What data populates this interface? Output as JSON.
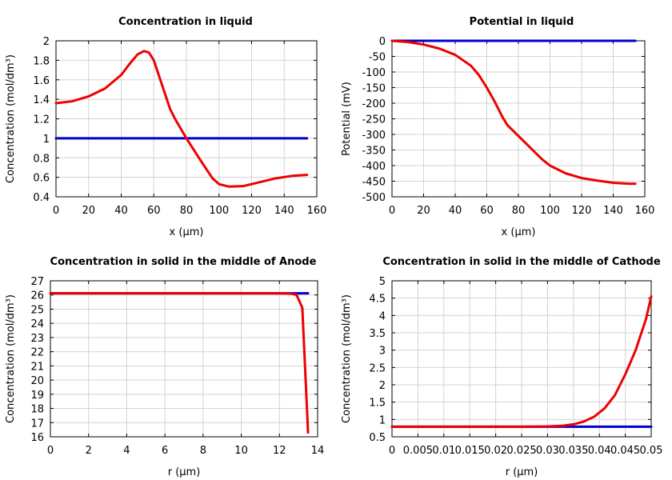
{
  "chart_data": [
    {
      "type": "line",
      "title": "Concentration in liquid",
      "xlabel": "x (μm)",
      "ylabel": "Concentration (mol/dm³)",
      "xlim": [
        0,
        160
      ],
      "ylim": [
        0.4,
        2
      ],
      "xticks": [
        "0",
        "20",
        "40",
        "60",
        "80",
        "100",
        "120",
        "140",
        "160"
      ],
      "yticks": [
        "0.4",
        "0.6",
        "0.8",
        "1",
        "1.2",
        "1.4",
        "1.6",
        "1.8",
        "2"
      ],
      "grid": true,
      "series": [
        {
          "color": "#0000cc",
          "x": [
            0,
            154
          ],
          "y": [
            1.0,
            1.0
          ]
        },
        {
          "color": "#ee0000",
          "x": [
            0,
            10,
            20,
            30,
            40,
            45,
            50,
            54,
            57,
            60,
            65,
            70,
            73,
            80,
            90,
            96,
            100,
            106,
            115,
            125,
            135,
            145,
            154
          ],
          "y": [
            1.36,
            1.38,
            1.43,
            1.51,
            1.65,
            1.76,
            1.86,
            1.895,
            1.88,
            1.8,
            1.55,
            1.3,
            1.2,
            1.0,
            0.74,
            0.59,
            0.53,
            0.505,
            0.51,
            0.55,
            0.59,
            0.615,
            0.625
          ]
        }
      ]
    },
    {
      "type": "line",
      "title": "Potential in liquid",
      "xlabel": "x (μm)",
      "ylabel": "Potential (mV)",
      "xlim": [
        0,
        160
      ],
      "ylim": [
        -500,
        0
      ],
      "xticks": [
        "0",
        "20",
        "40",
        "60",
        "80",
        "100",
        "120",
        "140",
        "160"
      ],
      "yticks": [
        "-500",
        "-450",
        "-400",
        "-350",
        "-300",
        "-250",
        "-200",
        "-150",
        "-100",
        "-50",
        "0"
      ],
      "grid": true,
      "series": [
        {
          "color": "#0000cc",
          "x": [
            0,
            154
          ],
          "y": [
            0,
            0
          ]
        },
        {
          "color": "#ee0000",
          "x": [
            0,
            10,
            20,
            30,
            40,
            50,
            55,
            60,
            65,
            70,
            73,
            80,
            90,
            95,
            100,
            110,
            120,
            130,
            140,
            150,
            154
          ],
          "y": [
            0,
            -4,
            -12,
            -25,
            -45,
            -80,
            -110,
            -150,
            -195,
            -245,
            -270,
            -305,
            -355,
            -380,
            -400,
            -425,
            -440,
            -448,
            -455,
            -458,
            -458
          ]
        }
      ]
    },
    {
      "type": "line",
      "title": "Concentration in solid in the middle of Anode",
      "xlabel": "r (μm)",
      "ylabel": "Concentration (mol/dm³)",
      "xlim": [
        0,
        14
      ],
      "ylim": [
        16,
        27
      ],
      "xticks": [
        "0",
        "2",
        "4",
        "6",
        "8",
        "10",
        "12",
        "14"
      ],
      "yticks": [
        "16",
        "17",
        "18",
        "19",
        "20",
        "21",
        "22",
        "23",
        "24",
        "25",
        "26",
        "27"
      ],
      "grid": true,
      "series": [
        {
          "color": "#0000cc",
          "x": [
            0,
            13.5
          ],
          "y": [
            26.12,
            26.12
          ]
        },
        {
          "color": "#ee0000",
          "x": [
            0,
            12,
            12.6,
            12.9,
            13.2,
            13.5
          ],
          "y": [
            26.12,
            26.12,
            26.1,
            26.0,
            25.1,
            16.3
          ]
        }
      ]
    },
    {
      "type": "line",
      "title": "Concentration in solid in the middle of Cathode",
      "xlabel": "r (μm)",
      "ylabel": "Concentration (mol/dm³)",
      "xlim": [
        0,
        0.05
      ],
      "ylim": [
        0.5,
        5
      ],
      "xticks": [
        "0",
        "0.005",
        "0.01",
        "0.015",
        "0.02",
        "0.025",
        "0.03",
        "0.035",
        "0.04",
        "0.045",
        "0.05"
      ],
      "yticks": [
        "0.5",
        "1",
        "1.5",
        "2",
        "2.5",
        "3",
        "3.5",
        "4",
        "4.5",
        "5"
      ],
      "grid": true,
      "series": [
        {
          "color": "#0000cc",
          "x": [
            0,
            0.05
          ],
          "y": [
            0.79,
            0.79
          ]
        },
        {
          "color": "#ee0000",
          "x": [
            0,
            0.025,
            0.03,
            0.033,
            0.035,
            0.037,
            0.039,
            0.041,
            0.043,
            0.045,
            0.047,
            0.049,
            0.05
          ],
          "y": [
            0.79,
            0.79,
            0.8,
            0.82,
            0.86,
            0.94,
            1.08,
            1.32,
            1.7,
            2.3,
            3.0,
            3.9,
            4.55
          ]
        }
      ]
    }
  ]
}
